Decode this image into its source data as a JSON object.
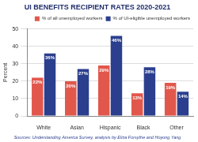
{
  "chart_data": {
    "type": "bar",
    "title": "UI BENEFITS RECIPIENT RATES 2020-2021",
    "ylabel": "Percent",
    "source": "Sources: Understanding America Survey, analysis by Eliza Forsythe and Hoyong Yang",
    "categories": [
      "White",
      "Asian",
      "Hispanic",
      "Black",
      "Other"
    ],
    "series": [
      {
        "name": "% of all unemployed workers",
        "color": "#e2574c",
        "values": [
          22,
          20,
          29,
          13,
          19
        ],
        "value_labels": [
          "22%",
          "20%",
          "29%",
          "13%",
          "19%"
        ]
      },
      {
        "name": "% of UI-eligible unemployed workers",
        "color": "#2b3f8e",
        "values": [
          36,
          27,
          46,
          28,
          14
        ],
        "value_labels": [
          "36%",
          "27%",
          "46%",
          "28%",
          "14%"
        ]
      }
    ],
    "ylim": [
      0,
      50
    ],
    "yticks": [
      0,
      10,
      20,
      30,
      40,
      50
    ],
    "grid": true,
    "legend": "upper right",
    "data_labels": true
  }
}
